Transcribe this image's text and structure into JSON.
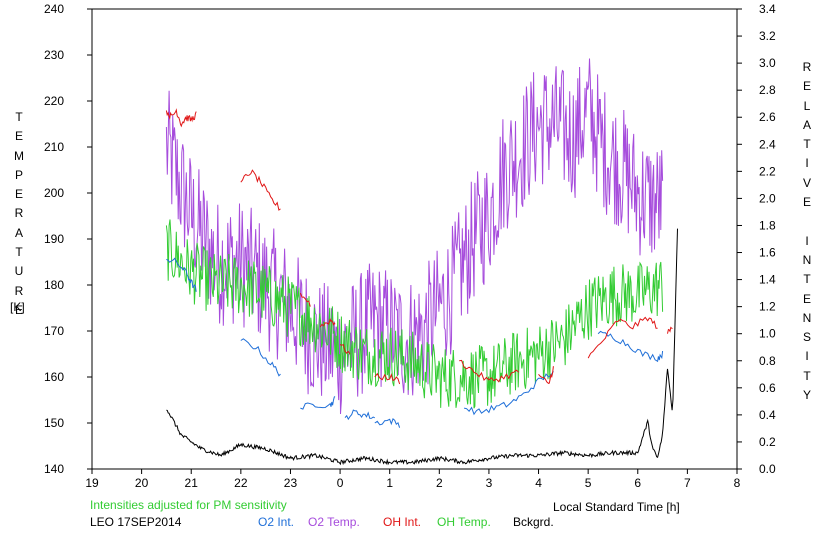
{
  "chart_data": {
    "type": "line",
    "title": "",
    "xlabel": "Local Standard Time [h]",
    "ylabel_left": "TEMPERATURE",
    "ylabel_left_unit": "[K]",
    "ylabel_right": "RELATIVE INTENSITY",
    "note": "Intensities adjusted for PM sensitivity",
    "station_date": "LEO 17SEP2014",
    "x_range": [
      19,
      32
    ],
    "x_ticks": [
      19,
      20,
      21,
      22,
      23,
      24,
      25,
      26,
      27,
      28,
      29,
      30,
      31,
      32
    ],
    "x_tick_labels": [
      "19",
      "20",
      "21",
      "22",
      "23",
      "0",
      "1",
      "2",
      "3",
      "4",
      "5",
      "6",
      "7",
      "8"
    ],
    "y_left_range": [
      140,
      240
    ],
    "y_left_ticks": [
      140,
      150,
      160,
      170,
      180,
      190,
      200,
      210,
      220,
      230,
      240
    ],
    "y_right_range": [
      0.0,
      3.4
    ],
    "y_right_tick_labels": [
      "0.0",
      "0.2",
      "0.4",
      "0.6",
      "0.8",
      "1.0",
      "1.2",
      "1.4",
      "1.6",
      "1.8",
      "2.0",
      "2.2",
      "2.4",
      "2.6",
      "2.8",
      "3.0",
      "3.2",
      "3.4"
    ],
    "grid": false,
    "legend": [
      {
        "label": "O2 Int.",
        "color": "#1f6fd8"
      },
      {
        "label": "O2 Temp.",
        "color": "#a64cdc"
      },
      {
        "label": "OH Int.",
        "color": "#e01515"
      },
      {
        "label": "OH Temp.",
        "color": "#33cc33"
      },
      {
        "label": "Bckgrd.",
        "color": "#000000"
      }
    ],
    "series": [
      {
        "name": "O2 Temp.",
        "color": "#a64cdc",
        "axis": "left",
        "style": "noisy",
        "x": [
          20.5,
          21.0,
          21.5,
          22.0,
          22.5,
          23.0,
          23.5,
          24.0,
          24.3,
          24.7,
          25.0,
          25.3,
          25.7,
          26.0,
          26.3,
          26.7,
          27.0,
          27.3,
          27.7,
          28.0,
          28.3,
          28.7,
          29.0,
          29.3,
          29.7,
          30.0,
          30.3,
          30.5
        ],
        "y": [
          210,
          195,
          185,
          185,
          180,
          175,
          168,
          165,
          168,
          172,
          170,
          168,
          170,
          175,
          180,
          190,
          195,
          205,
          210,
          215,
          215,
          212,
          218,
          210,
          205,
          200,
          198,
          198
        ],
        "amp": 14
      },
      {
        "name": "OH Temp.",
        "color": "#33cc33",
        "axis": "left",
        "style": "noisy",
        "x": [
          20.5,
          21.0,
          21.5,
          22.0,
          22.5,
          23.0,
          23.5,
          24.0,
          24.5,
          25.0,
          25.5,
          26.0,
          26.5,
          27.0,
          27.5,
          28.0,
          28.5,
          29.0,
          29.5,
          30.0,
          30.5
        ],
        "y": [
          188,
          183,
          180,
          180,
          178,
          175,
          172,
          168,
          165,
          165,
          163,
          160,
          160,
          160,
          163,
          165,
          168,
          175,
          178,
          178,
          180
        ],
        "amp": 7
      },
      {
        "name": "O2 Int.",
        "color": "#1f6fd8",
        "axis": "right",
        "style": "segments",
        "segments": [
          {
            "x": [
              20.5,
              20.7,
              20.9,
              21.0,
              21.1
            ],
            "y": [
              1.55,
              1.53,
              1.45,
              1.38,
              1.32
            ]
          },
          {
            "x": [
              22.0,
              22.3,
              22.6,
              22.8
            ],
            "y": [
              0.95,
              0.9,
              0.78,
              0.7
            ]
          },
          {
            "x": [
              23.2,
              23.5,
              23.8,
              23.9
            ],
            "y": [
              0.45,
              0.48,
              0.47,
              0.52
            ]
          },
          {
            "x": [
              24.1,
              24.3,
              24.5,
              24.7
            ],
            "y": [
              0.38,
              0.42,
              0.4,
              0.38
            ]
          },
          {
            "x": [
              24.7,
              25.0,
              25.2
            ],
            "y": [
              0.34,
              0.36,
              0.33
            ]
          },
          {
            "x": [
              26.5,
              26.8,
              27.1,
              27.4,
              27.7,
              28.0,
              28.3
            ],
            "y": [
              0.45,
              0.42,
              0.45,
              0.48,
              0.55,
              0.65,
              0.72
            ]
          },
          {
            "x": [
              29.2,
              29.5,
              29.8,
              30.1,
              30.4,
              30.5
            ],
            "y": [
              1.0,
              0.98,
              0.92,
              0.85,
              0.82,
              0.85
            ]
          }
        ]
      },
      {
        "name": "OH Int.",
        "color": "#e01515",
        "axis": "right",
        "style": "segments",
        "segments": [
          {
            "x": [
              20.5,
              20.6,
              20.7,
              20.8,
              20.9,
              21.0,
              21.1
            ],
            "y": [
              2.65,
              2.6,
              2.65,
              2.55,
              2.6,
              2.58,
              2.62
            ]
          },
          {
            "x": [
              22.0,
              22.2,
              22.4,
              22.6,
              22.8
            ],
            "y": [
              2.12,
              2.2,
              2.12,
              2.0,
              1.92
            ]
          },
          {
            "x": [
              23.2,
              23.4
            ],
            "y": [
              1.3,
              1.22
            ]
          },
          {
            "x": [
              23.6,
              23.8,
              23.9
            ],
            "y": [
              1.05,
              1.1,
              1.08
            ]
          },
          {
            "x": [
              24.0,
              24.2
            ],
            "y": [
              0.92,
              0.85
            ]
          },
          {
            "x": [
              24.7,
              25.0,
              25.2
            ],
            "y": [
              0.68,
              0.68,
              0.65
            ]
          },
          {
            "x": [
              26.4,
              26.7,
              27.0,
              27.3,
              27.6
            ],
            "y": [
              0.8,
              0.72,
              0.65,
              0.68,
              0.72
            ]
          },
          {
            "x": [
              28.0,
              28.2,
              28.3
            ],
            "y": [
              0.7,
              0.62,
              0.75
            ]
          },
          {
            "x": [
              29.0,
              29.3,
              29.6,
              29.9,
              30.2,
              30.4
            ],
            "y": [
              0.82,
              0.95,
              1.1,
              1.05,
              1.12,
              1.05
            ]
          },
          {
            "x": [
              30.6,
              30.7
            ],
            "y": [
              1.0,
              1.05
            ]
          }
        ]
      },
      {
        "name": "Bckgrd.",
        "color": "#000000",
        "axis": "right",
        "style": "noisy",
        "x": [
          20.5,
          20.8,
          21.2,
          21.6,
          22.0,
          22.5,
          23.0,
          23.5,
          24.0,
          24.5,
          25.0,
          25.5,
          26.0,
          26.5,
          27.0,
          27.5,
          28.0,
          28.5,
          29.0,
          29.5,
          30.0,
          30.2,
          30.3,
          30.4,
          30.5,
          30.6,
          30.7,
          30.8
        ],
        "y": [
          0.45,
          0.25,
          0.15,
          0.1,
          0.18,
          0.15,
          0.08,
          0.1,
          0.05,
          0.08,
          0.05,
          0.05,
          0.08,
          0.05,
          0.08,
          0.1,
          0.1,
          0.12,
          0.1,
          0.12,
          0.12,
          0.35,
          0.15,
          0.08,
          0.25,
          0.75,
          0.4,
          1.78
        ],
        "amp": 0.015
      }
    ]
  }
}
